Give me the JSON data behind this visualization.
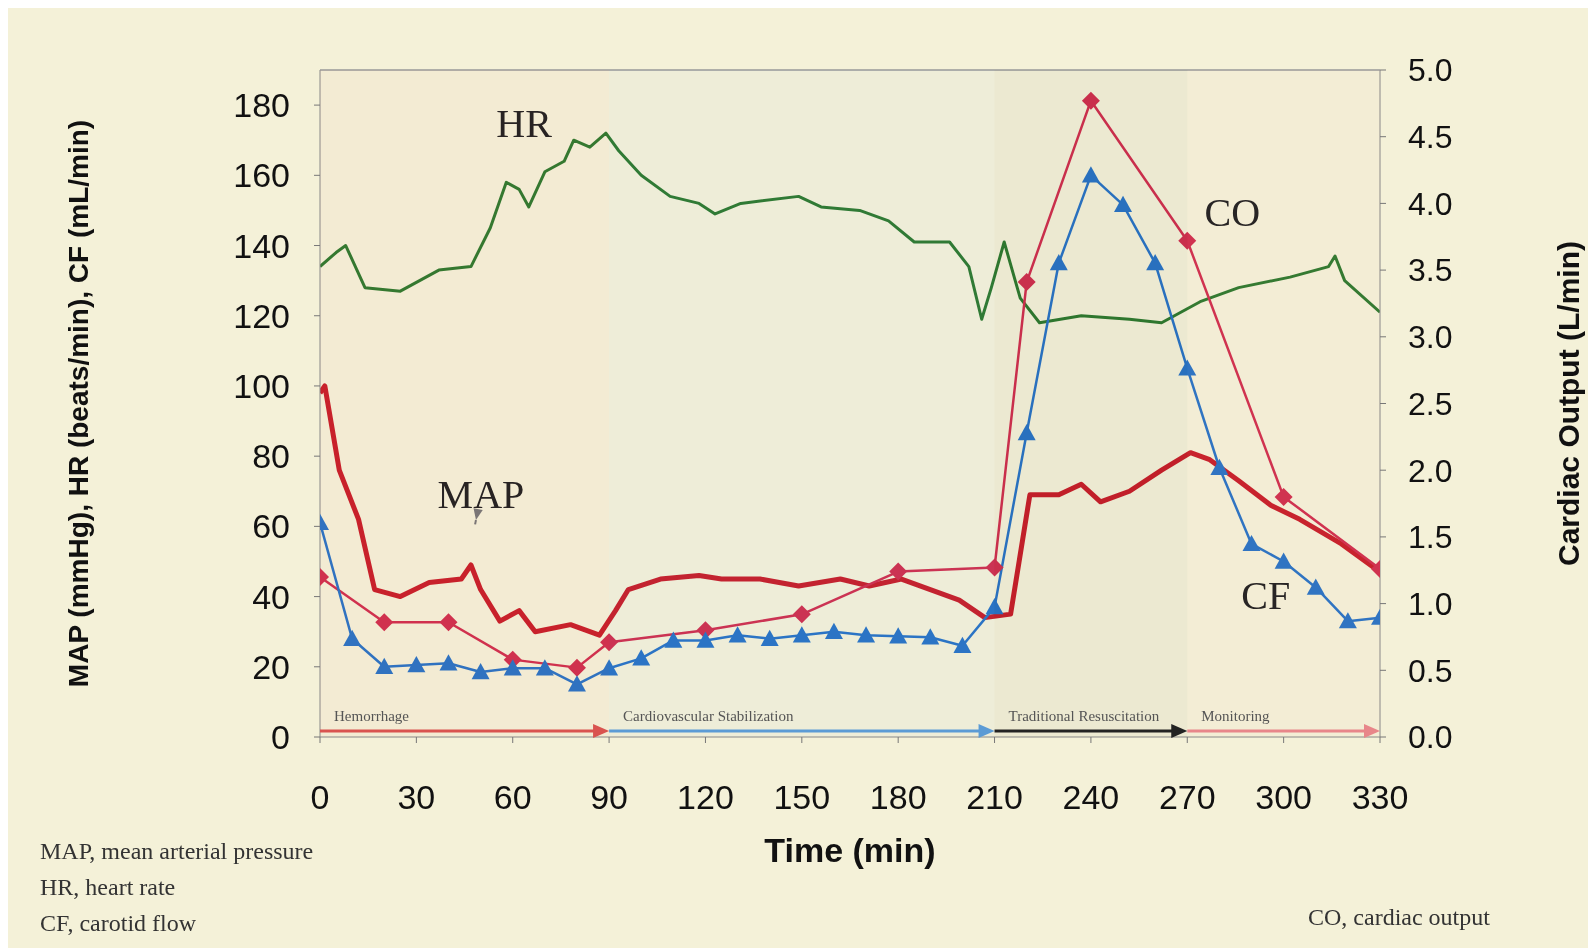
{
  "chart_data": {
    "type": "line",
    "xlabel": "Time (min)",
    "ylabel": "MAP (mmHg), HR (beats/min), CF (mL/min)",
    "y2label": "Cardiac Output (L/min)",
    "xlim": [
      0,
      330
    ],
    "xticks": [
      0,
      30,
      60,
      90,
      120,
      150,
      180,
      210,
      240,
      270,
      300,
      330
    ],
    "ylim": [
      0,
      190
    ],
    "yticks": [
      0,
      20,
      40,
      60,
      80,
      100,
      120,
      140,
      160,
      180
    ],
    "y2lim": [
      0,
      5
    ],
    "y2ticks": [
      {
        "value": 0,
        "label": "0.0"
      },
      0.5,
      {
        "value": 1,
        "label": "1.0"
      },
      {
        "value": 1.5,
        "label": "1.5"
      },
      {
        "value": 2,
        "label": "2.0"
      },
      2.5,
      {
        "value": 3,
        "label": "3.0"
      },
      3.5,
      {
        "value": 4,
        "label": "4.0"
      },
      4.5,
      {
        "value": 5,
        "label": "5.0"
      }
    ],
    "grid": false,
    "legend": false,
    "line_style": "solid",
    "series": [
      {
        "name": "HR",
        "color": "#2f7a2f",
        "marker": "none",
        "x": [
          0,
          5,
          8,
          14,
          25,
          37,
          47,
          53,
          58,
          62,
          65,
          70,
          76,
          79,
          84,
          89,
          93,
          100,
          109,
          118,
          123,
          131,
          149,
          156,
          168,
          177,
          185,
          196,
          202,
          206,
          209,
          213,
          218,
          224,
          237,
          252,
          262,
          274,
          286,
          302,
          314,
          316,
          319,
          330
        ],
        "values": [
          134,
          138,
          140,
          128,
          127,
          133,
          134,
          145,
          158,
          156,
          151,
          161,
          164,
          170,
          168,
          172,
          167,
          160,
          154,
          152,
          149,
          152,
          154,
          151,
          150,
          147,
          141,
          141,
          134,
          119,
          128,
          141,
          125,
          118,
          120,
          119,
          118,
          124,
          128,
          131,
          134,
          137,
          130,
          121
        ]
      },
      {
        "name": "MAP",
        "color": "#c8202a",
        "marker": "none",
        "x": [
          0,
          1.5,
          6,
          12,
          17,
          25,
          34,
          44,
          47,
          50,
          56,
          62,
          67,
          78,
          87,
          92,
          96,
          106,
          118,
          125,
          137,
          149,
          162,
          171,
          181,
          190,
          199,
          207,
          215,
          221,
          230,
          237,
          243,
          252,
          262,
          271,
          277,
          286,
          296,
          305,
          318,
          330
        ],
        "values": [
          98,
          100,
          76,
          62,
          42,
          40,
          44,
          45,
          49,
          42,
          33,
          36,
          30,
          32,
          29,
          36,
          42,
          45,
          46,
          45,
          45,
          43,
          45,
          43,
          45,
          42,
          39,
          34,
          35,
          69,
          69,
          72,
          67,
          70,
          76,
          81,
          79,
          73,
          66,
          62,
          55,
          47
        ]
      },
      {
        "name": "CO",
        "color": "#d0304e",
        "marker": "diamond",
        "axis": "y2",
        "x": [
          0,
          20,
          40,
          60,
          80,
          90,
          120,
          150,
          180,
          210,
          220,
          240,
          270,
          300,
          330
        ],
        "values": [
          1.2,
          0.86,
          0.86,
          0.58,
          0.52,
          0.71,
          0.8,
          0.92,
          1.24,
          1.27,
          3.41,
          4.77,
          3.72,
          1.8,
          1.26
        ]
      },
      {
        "name": "CF",
        "color": "#2a74c4",
        "marker": "triangle",
        "x": [
          0,
          10,
          20,
          30,
          40,
          50,
          60,
          70,
          80,
          90,
          100,
          110,
          120,
          130,
          140,
          150,
          160,
          170,
          180,
          190,
          200,
          210,
          220,
          230,
          240,
          250,
          260,
          270,
          280,
          290,
          300,
          310,
          320,
          330
        ],
        "values": [
          61,
          28,
          20,
          20.5,
          21,
          18.5,
          19.6,
          19.6,
          15,
          19.6,
          22.4,
          27.5,
          27.5,
          29,
          28,
          29,
          30,
          29,
          28.7,
          28.4,
          26,
          37,
          86.6,
          135,
          160,
          151.6,
          135,
          105,
          76.7,
          55,
          50,
          42.6,
          33,
          34
        ]
      }
    ],
    "bands": [
      {
        "axis": "x",
        "from": 0,
        "to": 90,
        "label": "Hemorrhage",
        "color": "#d9534f"
      },
      {
        "axis": "x",
        "from": 90,
        "to": 210,
        "label": "Cardiovascular Stabilization",
        "color": "#5b9bd5"
      },
      {
        "axis": "x",
        "from": 210,
        "to": 270,
        "label": "Traditional Resuscitation",
        "color": "#222222"
      },
      {
        "axis": "x",
        "from": 270,
        "to": 330,
        "label": "Monitoring",
        "color": "#e8868a"
      }
    ],
    "annotations": [
      "MAP, mean arterial pressure",
      "HR, heart rate",
      "CF, carotid flow",
      "CO, cardiac output"
    ]
  }
}
